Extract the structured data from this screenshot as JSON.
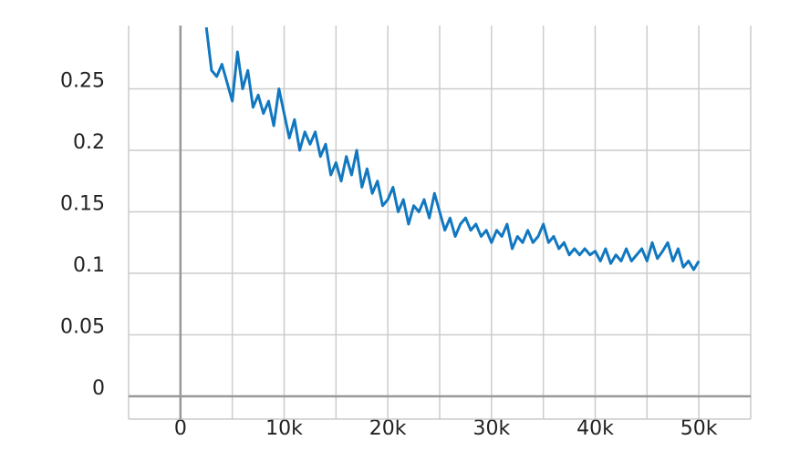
{
  "chart_data": {
    "type": "line",
    "x": [
      2500,
      3000,
      3500,
      4000,
      4500,
      5000,
      5500,
      6000,
      6500,
      7000,
      7500,
      8000,
      8500,
      9000,
      9500,
      10000,
      10500,
      11000,
      11500,
      12000,
      12500,
      13000,
      13500,
      14000,
      14500,
      15000,
      15500,
      16000,
      16500,
      17000,
      17500,
      18000,
      18500,
      19000,
      19500,
      20000,
      20500,
      21000,
      21500,
      22000,
      22500,
      23000,
      23500,
      24000,
      24500,
      25000,
      25500,
      26000,
      26500,
      27000,
      27500,
      28000,
      28500,
      29000,
      29500,
      30000,
      30500,
      31000,
      31500,
      32000,
      32500,
      33000,
      33500,
      34000,
      34500,
      35000,
      35500,
      36000,
      36500,
      37000,
      37500,
      38000,
      38500,
      39000,
      39500,
      40000,
      40500,
      41000,
      41500,
      42000,
      42500,
      43000,
      43500,
      44000,
      44500,
      45000,
      45500,
      46000,
      46500,
      47000,
      47500,
      48000,
      48500,
      49000,
      49500,
      50000
    ],
    "series": [
      {
        "color": "#1178c0",
        "values": [
          0.3,
          0.265,
          0.26,
          0.27,
          0.255,
          0.24,
          0.28,
          0.25,
          0.265,
          0.235,
          0.245,
          0.23,
          0.24,
          0.22,
          0.25,
          0.23,
          0.21,
          0.225,
          0.2,
          0.215,
          0.205,
          0.215,
          0.195,
          0.205,
          0.18,
          0.19,
          0.175,
          0.195,
          0.18,
          0.2,
          0.17,
          0.185,
          0.165,
          0.175,
          0.155,
          0.16,
          0.17,
          0.15,
          0.16,
          0.14,
          0.155,
          0.15,
          0.16,
          0.145,
          0.165,
          0.15,
          0.135,
          0.145,
          0.13,
          0.14,
          0.145,
          0.135,
          0.14,
          0.13,
          0.135,
          0.125,
          0.135,
          0.13,
          0.14,
          0.12,
          0.13,
          0.125,
          0.135,
          0.125,
          0.13,
          0.14,
          0.125,
          0.13,
          0.12,
          0.125,
          0.115,
          0.12,
          0.115,
          0.12,
          0.115,
          0.118,
          0.11,
          0.12,
          0.108,
          0.115,
          0.11,
          0.12,
          0.11,
          0.115,
          0.12,
          0.11,
          0.125,
          0.112,
          0.118,
          0.125,
          0.11,
          0.12,
          0.105,
          0.11,
          0.103,
          0.11
        ]
      }
    ],
    "xlim": [
      -5000,
      55000
    ],
    "ylim": [
      -0.0185,
      0.3015
    ],
    "xticks": [
      {
        "value": 0,
        "label": "0"
      },
      {
        "value": 10000,
        "label": "10k"
      },
      {
        "value": 20000,
        "label": "20k"
      },
      {
        "value": 30000,
        "label": "30k"
      },
      {
        "value": 40000,
        "label": "40k"
      },
      {
        "value": 50000,
        "label": "50k"
      }
    ],
    "xminorticks": [
      -5000,
      5000,
      15000,
      25000,
      35000,
      45000,
      55000
    ],
    "yticks": [
      0,
      0.05,
      0.1,
      0.15,
      0.2,
      0.25
    ],
    "grid": true
  }
}
